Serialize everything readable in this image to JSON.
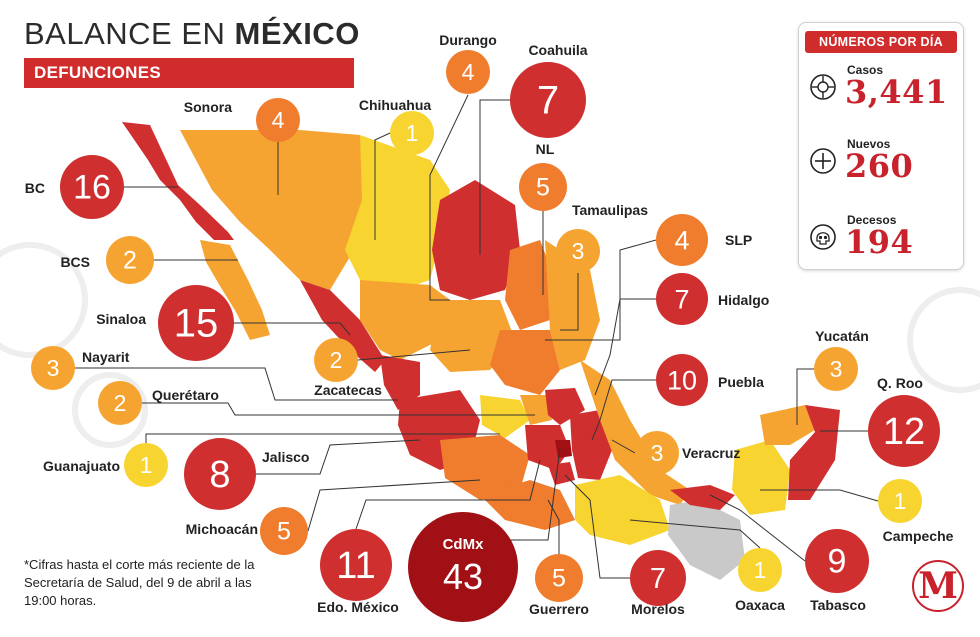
{
  "header": {
    "title_light": "BALANCE EN ",
    "title_bold": "MÉXICO",
    "subtitle": "DEFUNCIONES"
  },
  "stats_panel": {
    "heading": "NÚMEROS POR DÍA",
    "items": [
      {
        "label": "Casos",
        "value": "3,441",
        "icon": "virus-icon"
      },
      {
        "label": "Nuevos",
        "value": "260",
        "icon": "plus-circle-icon"
      },
      {
        "label": "Decesos",
        "value": "194",
        "icon": "skull-icon"
      }
    ]
  },
  "footnote": "*Cifras hasta el corte más reciente de la Secretaría de Salud, del 9 de abril a las 19:00 horas.",
  "logo": "M",
  "colors": {
    "brand_red": "#d02c2c",
    "deep_red": "#c8232c",
    "level_yellow": "#f7d430",
    "level_light_orange": "#f6a431",
    "level_orange": "#ef7d2d",
    "level_red": "#cf2f2f",
    "level_dark_red": "#a11014",
    "no_data_grey": "#c9c9c9"
  },
  "states": [
    {
      "name": "Durango",
      "deaths": 4
    },
    {
      "name": "Coahuila",
      "deaths": 7
    },
    {
      "name": "Sonora",
      "deaths": 4
    },
    {
      "name": "Chihuahua",
      "deaths": 1
    },
    {
      "name": "BC",
      "deaths": 16
    },
    {
      "name": "NL",
      "deaths": 5
    },
    {
      "name": "Tamaulipas",
      "deaths": 3
    },
    {
      "name": "SLP",
      "deaths": 4
    },
    {
      "name": "BCS",
      "deaths": 2
    },
    {
      "name": "Hidalgo",
      "deaths": 7
    },
    {
      "name": "Sinaloa",
      "deaths": 15
    },
    {
      "name": "Zacatecas",
      "deaths": 2
    },
    {
      "name": "Yucatán",
      "deaths": 3
    },
    {
      "name": "Nayarit",
      "deaths": 3
    },
    {
      "name": "Puebla",
      "deaths": 10
    },
    {
      "name": "Q. Roo",
      "deaths": 12
    },
    {
      "name": "Querétaro",
      "deaths": 2
    },
    {
      "name": "Guanajuato",
      "deaths": 1
    },
    {
      "name": "Jalisco",
      "deaths": 8
    },
    {
      "name": "Veracruz",
      "deaths": 3
    },
    {
      "name": "Campeche",
      "deaths": 1
    },
    {
      "name": "Michoacán",
      "deaths": 5
    },
    {
      "name": "CdMx",
      "deaths": 43
    },
    {
      "name": "Edo. México",
      "deaths": 11
    },
    {
      "name": "Guerrero",
      "deaths": 5
    },
    {
      "name": "Morelos",
      "deaths": 7
    },
    {
      "name": "Oaxaca",
      "deaths": 1
    },
    {
      "name": "Tabasco",
      "deaths": 9
    }
  ]
}
